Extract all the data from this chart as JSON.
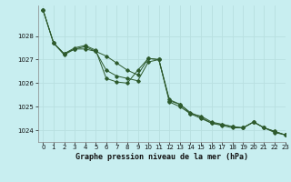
{
  "title": "Graphe pression niveau de la mer (hPa)",
  "bg_color": "#c8eef0",
  "grid_color": "#b8dfe0",
  "line_color": "#2d5a2d",
  "xlim": [
    -0.5,
    23
  ],
  "ylim": [
    1023.5,
    1029.3
  ],
  "yticks": [
    1024,
    1025,
    1026,
    1027,
    1028
  ],
  "xticks": [
    0,
    1,
    2,
    3,
    4,
    5,
    6,
    7,
    8,
    9,
    10,
    11,
    12,
    13,
    14,
    15,
    16,
    17,
    18,
    19,
    20,
    21,
    22,
    23
  ],
  "series": [
    [
      1029.1,
      1027.7,
      1027.2,
      1027.45,
      1027.45,
      1027.35,
      1027.15,
      1026.85,
      1026.55,
      1026.35,
      1027.05,
      1027.0,
      1025.2,
      1025.0,
      1024.7,
      1024.5,
      1024.3,
      1024.2,
      1024.1,
      1024.1,
      1024.35,
      1024.1,
      1023.9,
      1023.8
    ],
    [
      1029.1,
      1027.7,
      1027.25,
      1027.45,
      1027.55,
      1027.35,
      1026.55,
      1026.3,
      1026.2,
      1026.1,
      1026.9,
      1027.0,
      1025.25,
      1025.1,
      1024.75,
      1024.55,
      1024.3,
      1024.25,
      1024.15,
      1024.1,
      1024.35,
      1024.1,
      1023.95,
      1023.8
    ],
    [
      1029.1,
      1027.7,
      1027.25,
      1027.5,
      1027.6,
      1027.4,
      1026.2,
      1026.05,
      1026.0,
      1026.55,
      1027.05,
      1027.0,
      1025.3,
      1025.1,
      1024.7,
      1024.6,
      1024.35,
      1024.25,
      1024.15,
      1024.1,
      1024.35,
      1024.1,
      1023.95,
      1023.8
    ]
  ],
  "title_fontsize": 6.0,
  "tick_fontsize": 5.0,
  "ylabel_fontsize": 5.5
}
